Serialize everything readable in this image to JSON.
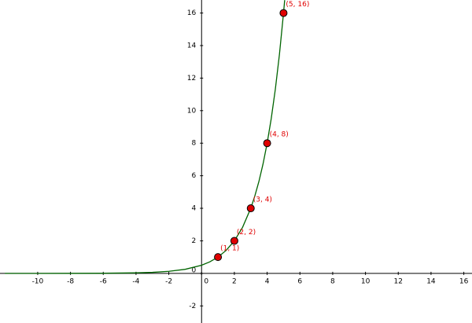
{
  "chart_data": {
    "type": "line",
    "x": [
      -12,
      -10,
      -8,
      -6,
      -4,
      -3,
      -2,
      -1,
      0,
      0.5,
      1,
      1.5,
      2,
      2.5,
      3,
      3.25,
      3.5,
      3.75,
      4,
      4.25,
      4.5,
      4.75,
      5,
      5.07
    ],
    "series": [
      {
        "color": "#006400",
        "values": [
          0.0001,
          0.0005,
          0.002,
          0.0078,
          0.031,
          0.0625,
          0.125,
          0.25,
          0.5,
          0.707,
          1,
          1.414,
          2,
          2.828,
          4,
          4.757,
          5.657,
          6.727,
          8,
          9.514,
          11.314,
          13.454,
          16,
          16.79
        ]
      }
    ],
    "points": {
      "color": "#e00000",
      "x": [
        1,
        2,
        3,
        4,
        5
      ],
      "values": [
        1,
        2,
        4,
        8,
        16
      ],
      "value_labels": [
        "(1, 1)",
        "(2, 2)",
        "(3, 4)",
        "(4, 8)",
        "(5, 16)"
      ]
    },
    "xlim": [
      -12.3,
      16.5
    ],
    "ylim": [
      -3.05,
      16.8
    ],
    "xticks": [
      -10,
      -8,
      -6,
      -4,
      -2,
      0,
      2,
      4,
      6,
      8,
      10,
      12,
      14,
      16
    ],
    "yticks": [
      -2,
      0,
      2,
      4,
      6,
      8,
      10,
      12,
      14,
      16
    ],
    "grid": false
  }
}
